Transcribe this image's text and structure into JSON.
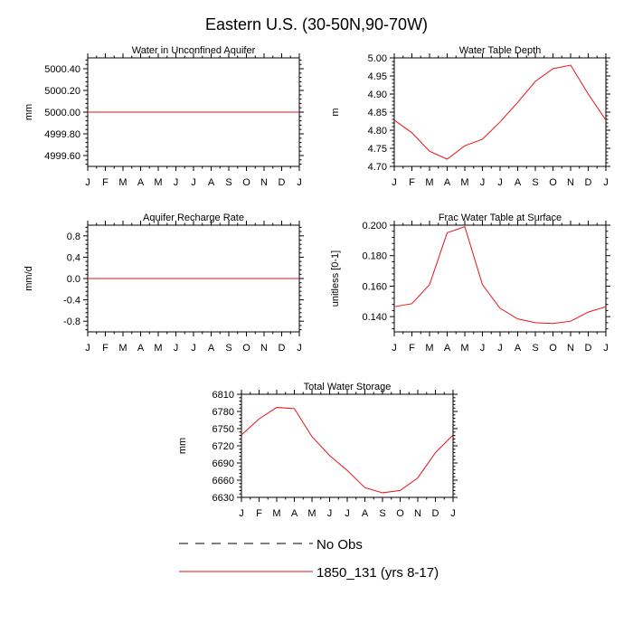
{
  "page_title": "Eastern U.S. (30-50N,90-70W)",
  "colors": {
    "model": "#e8131a",
    "obs": "#000000",
    "axis": "#000000"
  },
  "chart_data": [
    {
      "id": "unconfined",
      "type": "line",
      "title": "Water in Unconfined Aquifer",
      "ylabel": "mm",
      "xlabel": "",
      "x_tick_labels": [
        "J",
        "F",
        "M",
        "A",
        "M",
        "J",
        "J",
        "A",
        "S",
        "O",
        "N",
        "D",
        "J"
      ],
      "ylim": [
        4999.5,
        5000.5
      ],
      "y_ticks": [
        4999.6,
        4999.8,
        5000.0,
        5000.2,
        5000.4
      ],
      "y_tick_labels": [
        "4999.60",
        "4999.80",
        "5000.00",
        "5000.20",
        "5000.40"
      ],
      "series": [
        {
          "name": "1850_131 (yrs 8-17)",
          "values": [
            5000,
            5000,
            5000,
            5000,
            5000,
            5000,
            5000,
            5000,
            5000,
            5000,
            5000,
            5000,
            5000
          ]
        }
      ]
    },
    {
      "id": "wtd",
      "type": "line",
      "title": "Water Table Depth",
      "ylabel": "m",
      "xlabel": "",
      "x_tick_labels": [
        "J",
        "F",
        "M",
        "A",
        "M",
        "J",
        "J",
        "A",
        "S",
        "O",
        "N",
        "D",
        "J"
      ],
      "ylim": [
        4.7,
        5.0
      ],
      "y_ticks": [
        4.7,
        4.75,
        4.8,
        4.85,
        4.9,
        4.95,
        5.0
      ],
      "y_tick_labels": [
        "4.70",
        "4.75",
        "4.80",
        "4.85",
        "4.90",
        "4.95",
        "5.00"
      ],
      "series": [
        {
          "name": "1850_131 (yrs 8-17)",
          "values": [
            4.828,
            4.793,
            4.742,
            4.72,
            4.757,
            4.775,
            4.823,
            4.877,
            4.935,
            4.97,
            4.98,
            4.9,
            4.828
          ]
        }
      ]
    },
    {
      "id": "recharge",
      "type": "line",
      "title": "Aquifer Recharge Rate",
      "ylabel": "mm/d",
      "xlabel": "",
      "x_tick_labels": [
        "J",
        "F",
        "M",
        "A",
        "M",
        "J",
        "J",
        "A",
        "S",
        "O",
        "N",
        "D",
        "J"
      ],
      "ylim": [
        -1.0,
        1.0
      ],
      "y_ticks": [
        -0.8,
        -0.4,
        0.0,
        0.4,
        0.8
      ],
      "y_tick_labels": [
        "-0.8",
        "-0.4",
        "0.0",
        "0.4",
        "0.8"
      ],
      "series": [
        {
          "name": "1850_131 (yrs 8-17)",
          "values": [
            0,
            0,
            0,
            0,
            0,
            0,
            0,
            0,
            0,
            0,
            0,
            0,
            0
          ]
        }
      ]
    },
    {
      "id": "fwtsurf",
      "type": "line",
      "title": "Frac Water Table at Surface",
      "ylabel": "unitless [0-1]",
      "xlabel": "",
      "x_tick_labels": [
        "J",
        "F",
        "M",
        "A",
        "M",
        "J",
        "J",
        "A",
        "S",
        "O",
        "N",
        "D",
        "J"
      ],
      "ylim": [
        0.13,
        0.2
      ],
      "y_ticks": [
        0.14,
        0.16,
        0.18,
        0.2
      ],
      "y_tick_labels": [
        "0.140",
        "0.160",
        "0.180",
        "0.200"
      ],
      "series": [
        {
          "name": "1850_131 (yrs 8-17)",
          "values": [
            0.1465,
            0.1485,
            0.161,
            0.195,
            0.199,
            0.161,
            0.1455,
            0.1385,
            0.136,
            0.1355,
            0.137,
            0.143,
            0.1465
          ]
        }
      ]
    },
    {
      "id": "tws",
      "type": "line",
      "title": "Total Water Storage",
      "ylabel": "mm",
      "xlabel": "",
      "x_tick_labels": [
        "J",
        "F",
        "M",
        "A",
        "M",
        "J",
        "J",
        "A",
        "S",
        "O",
        "N",
        "D",
        "J"
      ],
      "ylim": [
        6630,
        6810
      ],
      "y_ticks": [
        6630,
        6660,
        6690,
        6720,
        6750,
        6780,
        6810
      ],
      "y_tick_labels": [
        "6630",
        "6660",
        "6690",
        "6720",
        "6750",
        "6780",
        "6810"
      ],
      "series": [
        {
          "name": "1850_131 (yrs 8-17)",
          "values": [
            6739,
            6767,
            6787,
            6785,
            6736,
            6703,
            6677,
            6647,
            6638,
            6642,
            6664,
            6708,
            6739
          ]
        }
      ]
    }
  ],
  "legend": {
    "items": [
      {
        "label": "No Obs",
        "style": "dashed",
        "color": "#000000"
      },
      {
        "label": "1850_131 (yrs 8-17)",
        "style": "solid",
        "color": "#e8131a"
      }
    ]
  }
}
